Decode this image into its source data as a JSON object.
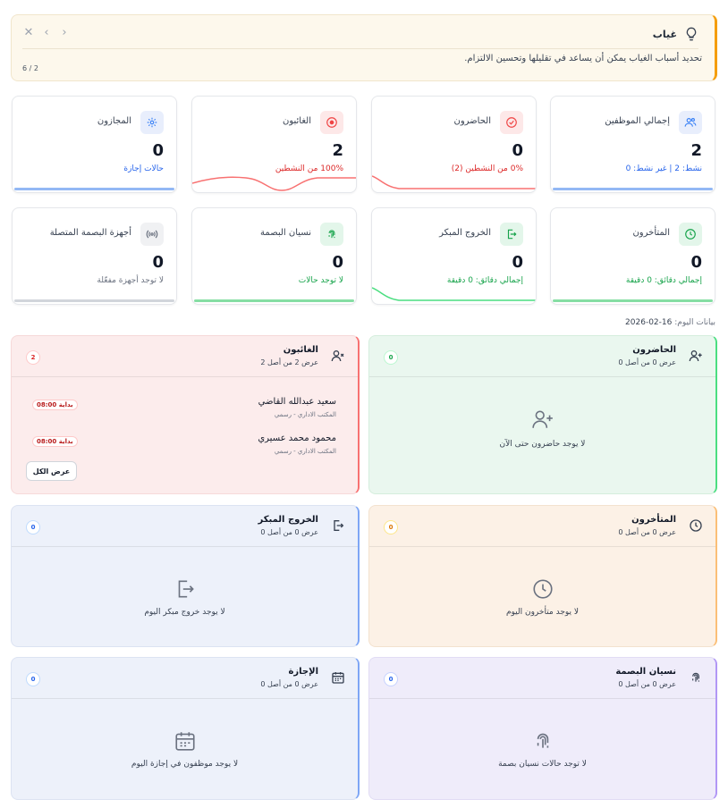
{
  "tip": {
    "title": "غياب",
    "text": "تحديد أسباب الغياب يمكن أن يساعد في تقليلها وتحسين الالتزام.",
    "pager": "6 / 2"
  },
  "stats": {
    "total": {
      "label": "إجمالي الموظفين",
      "value": "2",
      "sub": "نشط: 2 | غير نشط: 0"
    },
    "present": {
      "label": "الحاضرون",
      "value": "0",
      "sub": "0% من النشطين (2)"
    },
    "absent": {
      "label": "الغائبون",
      "value": "2",
      "sub": "100% من النشطين"
    },
    "leave": {
      "label": "المجازون",
      "value": "0",
      "sub": "حالات إجازة"
    },
    "late": {
      "label": "المتأخرون",
      "value": "0",
      "sub": "إجمالي دقائق: 0 دقيقة"
    },
    "early": {
      "label": "الخروج المبكر",
      "value": "0",
      "sub": "إجمالي دقائق: 0 دقيقة"
    },
    "forgot": {
      "label": "نسيان البصمة",
      "value": "0",
      "sub": "لا توجد حالات"
    },
    "devices": {
      "label": "أجهزة البصمة المتصلة",
      "value": "0",
      "sub": "لا توجد أجهزة مفعّلة"
    }
  },
  "date_line": {
    "label": "بيانات اليوم:",
    "value": "16-02-2026"
  },
  "panels": {
    "absent": {
      "title": "الغائبون",
      "sub": "عرض 2 من أصل 2",
      "count": "2",
      "people": [
        {
          "name": "سعيد عبدالله القاضي",
          "dept": "المكتب الاداري - رسمي",
          "tag": "بداية 08:00"
        },
        {
          "name": "محمود محمد عسيري",
          "dept": "المكتب الاداري - رسمي",
          "tag": "بداية 08:00"
        }
      ],
      "view_all": "عرض الكل"
    },
    "present": {
      "title": "الحاضرون",
      "sub": "عرض 0 من أصل 0",
      "count": "0",
      "empty": "لا يوجد حاضرون حتى الآن"
    },
    "early": {
      "title": "الخروج المبكر",
      "sub": "عرض 0 من أصل 0",
      "count": "0",
      "empty": "لا يوجد خروج مبكر اليوم"
    },
    "late": {
      "title": "المتأخرون",
      "sub": "عرض 0 من أصل 0",
      "count": "0",
      "empty": "لا يوجد متأخرون اليوم"
    },
    "leave": {
      "title": "الإجازة",
      "sub": "عرض 0 من أصل 0",
      "count": "0",
      "empty": "لا يوجد موظفون في إجازة اليوم"
    },
    "forgot": {
      "title": "نسيان البصمة",
      "sub": "عرض 0 من أصل 0",
      "count": "0",
      "empty": "لا توجد حالات نسيان بصمة"
    }
  },
  "colors": {
    "blue": "#3b82f6",
    "red": "#ef4444",
    "green": "#22c55e",
    "orange": "#f59e0b",
    "purple": "#a78bfa",
    "gray": "#9ca3af"
  },
  "icons": {
    "tip": "lightbulb-icon",
    "total": "users-icon",
    "present": "check-circle-icon",
    "absent": "x-circle-icon",
    "leave": "sun-icon",
    "late": "clock-icon",
    "early": "logout-icon",
    "forgot": "fingerprint-icon",
    "devices": "broadcast-icon"
  }
}
